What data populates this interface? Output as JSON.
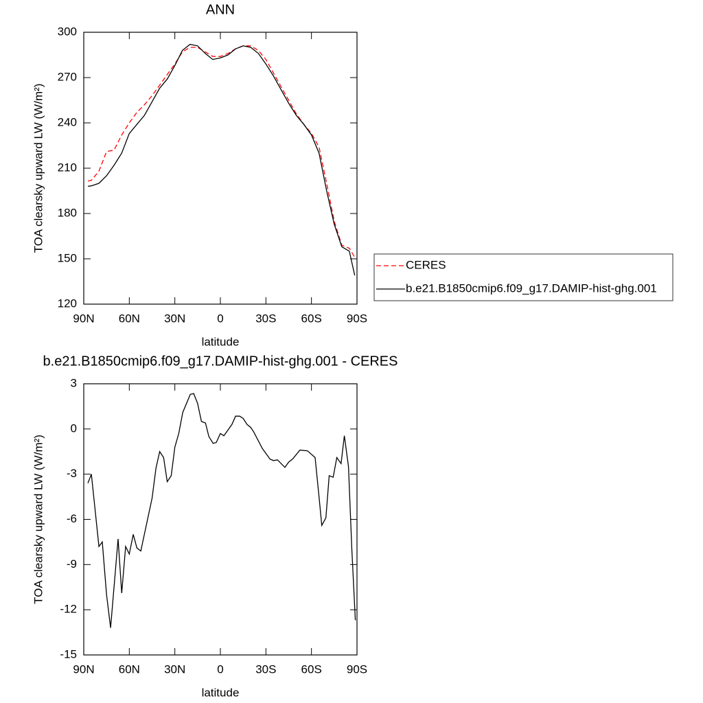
{
  "chart_data": [
    {
      "type": "line",
      "title": "ANN",
      "ylabel": "TOA clearsky upward LW (W/m²)",
      "xlabel": "latitude",
      "x": [
        87.3,
        85,
        80,
        75,
        70,
        65,
        60,
        55,
        50,
        45,
        40,
        35,
        30,
        25,
        20,
        15,
        10,
        5,
        0,
        -5,
        -10,
        -15,
        -20,
        -25,
        -30,
        -35,
        -40,
        -45,
        -50,
        -55,
        -60,
        -65,
        -70,
        -75,
        -80,
        -85,
        -88.5
      ],
      "series": [
        {
          "name": "CERES",
          "color": "#ff0000",
          "dash": true,
          "values": [
            201.5,
            202,
            208,
            221,
            222,
            232,
            240,
            247,
            252,
            258,
            265,
            272,
            279,
            287,
            290,
            290,
            287,
            284,
            284,
            286,
            289,
            291,
            291,
            288,
            282,
            273,
            264,
            255,
            246,
            239,
            233,
            224,
            200,
            175,
            159,
            157,
            151
          ]
        },
        {
          "name": "b.e21.B1850cmip6.f09_g17.DAMIP-hist-ghg.001",
          "color": "#000000",
          "dash": false,
          "values": [
            198,
            198.3,
            200,
            205,
            212,
            220,
            233,
            239,
            245,
            254,
            263,
            269,
            278,
            288,
            292,
            291,
            286,
            282,
            283,
            285,
            289,
            291,
            290,
            286,
            279,
            271,
            262,
            253,
            245,
            239,
            232,
            220,
            195,
            173,
            158,
            155,
            139
          ]
        }
      ],
      "xlim": [
        90,
        -90
      ],
      "xticks": [
        {
          "value": 90,
          "label": "90N"
        },
        {
          "value": 60,
          "label": "60N"
        },
        {
          "value": 30,
          "label": "30N"
        },
        0,
        {
          "value": -30,
          "label": "30S"
        },
        {
          "value": -60,
          "label": "60S"
        },
        {
          "value": -90,
          "label": "90S"
        }
      ],
      "ylim": [
        120,
        300
      ],
      "yticks": [
        120,
        150,
        180,
        210,
        240,
        270,
        300
      ],
      "legend": "right"
    },
    {
      "type": "line",
      "title": "b.e21.B1850cmip6.f09_g17.DAMIP-hist-ghg.001 - CERES",
      "ylabel": "TOA clearsky upward LW (W/m²)",
      "xlabel": "latitude",
      "x": [
        87.3,
        85,
        80,
        77.8,
        75,
        72.3,
        67.4,
        65,
        62.4,
        60,
        57.4,
        55,
        52.4,
        45,
        42.4,
        40,
        37.4,
        35,
        32.4,
        30,
        27.4,
        24.8,
        19.8,
        17.6,
        15,
        12.5,
        9.8,
        7.6,
        4.8,
        2.7,
        0,
        -2.3,
        -7.6,
        -10,
        -12.7,
        -15,
        -17.6,
        -20,
        -22,
        -27.7,
        -32.7,
        -35,
        -37.6,
        -42.5,
        -45,
        -47.6,
        -52.4,
        -57.4,
        -62.4,
        -65,
        -66.8,
        -69.5,
        -71.7,
        -74.3,
        -76.7,
        -79.5,
        -81.7,
        -84.4,
        -86.6,
        -88.9
      ],
      "values": [
        -3.6,
        -3.0,
        -7.8,
        -7.5,
        -11,
        -13.2,
        -7.3,
        -10.9,
        -7.8,
        -8.3,
        -7.0,
        -7.9,
        -8.1,
        -4.6,
        -2.6,
        -1.5,
        -1.9,
        -3.5,
        -3.1,
        -1.2,
        -0.3,
        1.1,
        2.3,
        2.35,
        1.7,
        0.5,
        0.4,
        -0.5,
        -0.95,
        -0.9,
        -0.3,
        -0.45,
        0.3,
        0.85,
        0.85,
        0.7,
        0.3,
        0.1,
        -0.2,
        -1.3,
        -2.0,
        -2.1,
        -2.05,
        -2.55,
        -2.2,
        -2.0,
        -1.4,
        -1.45,
        -1.9,
        -4.5,
        -6.4,
        -5.9,
        -3.1,
        -3.2,
        -1.9,
        -2.3,
        -0.45,
        -2.5,
        -8,
        -12.7
      ],
      "color": "#000000",
      "xlim": [
        90,
        -90
      ],
      "xticks": [
        {
          "value": 90,
          "label": "90N"
        },
        {
          "value": 60,
          "label": "60N"
        },
        {
          "value": 30,
          "label": "30N"
        },
        0,
        {
          "value": -30,
          "label": "30S"
        },
        {
          "value": -60,
          "label": "60S"
        },
        {
          "value": -90,
          "label": "90S"
        }
      ],
      "ylim": [
        -15,
        3
      ],
      "yticks": [
        -15,
        -12,
        -9,
        -6,
        -3,
        0,
        3
      ]
    }
  ]
}
